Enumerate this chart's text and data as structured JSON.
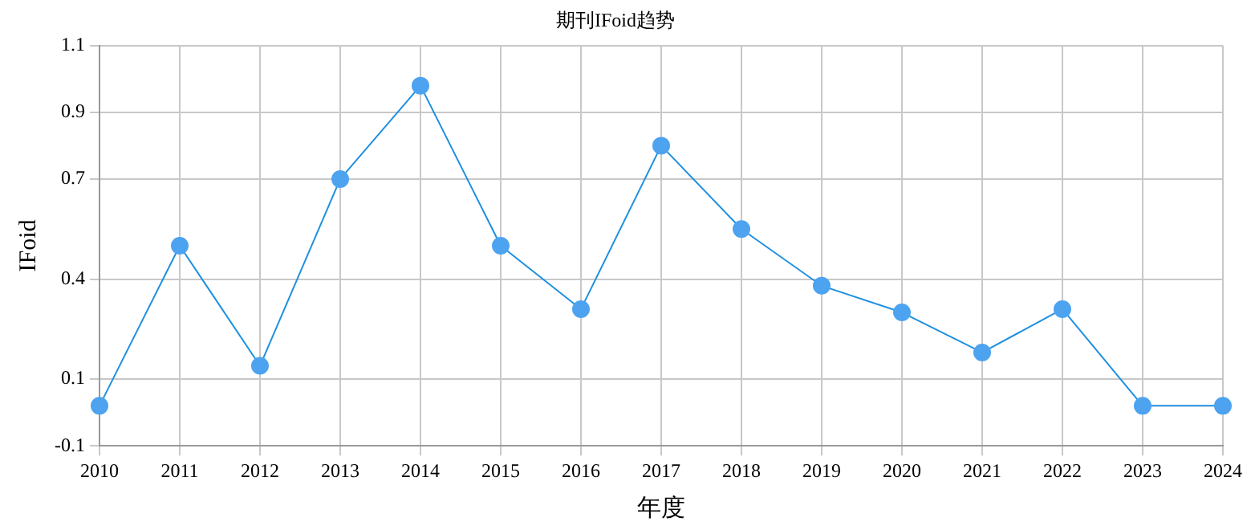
{
  "chart_data": {
    "type": "line",
    "title": "期刊IFoid趋势",
    "xlabel": "年度",
    "ylabel": "IFoid",
    "categories": [
      "2010",
      "2011",
      "2012",
      "2013",
      "2014",
      "2015",
      "2016",
      "2017",
      "2018",
      "2019",
      "2020",
      "2021",
      "2022",
      "2023",
      "2024"
    ],
    "series": [
      {
        "color": "#4da3f0",
        "values": [
          0.02,
          0.5,
          0.14,
          0.7,
          0.98,
          0.5,
          0.31,
          0.8,
          0.55,
          0.38,
          0.3,
          0.18,
          0.31,
          0.02,
          0.02
        ]
      }
    ],
    "ylim": [
      -0.1,
      1.1
    ],
    "yticks": [
      -0.1,
      0.1,
      0.4,
      0.7,
      0.9,
      1.1
    ],
    "grid": true,
    "legend": false,
    "marker": "circle",
    "line_style": "solid"
  }
}
